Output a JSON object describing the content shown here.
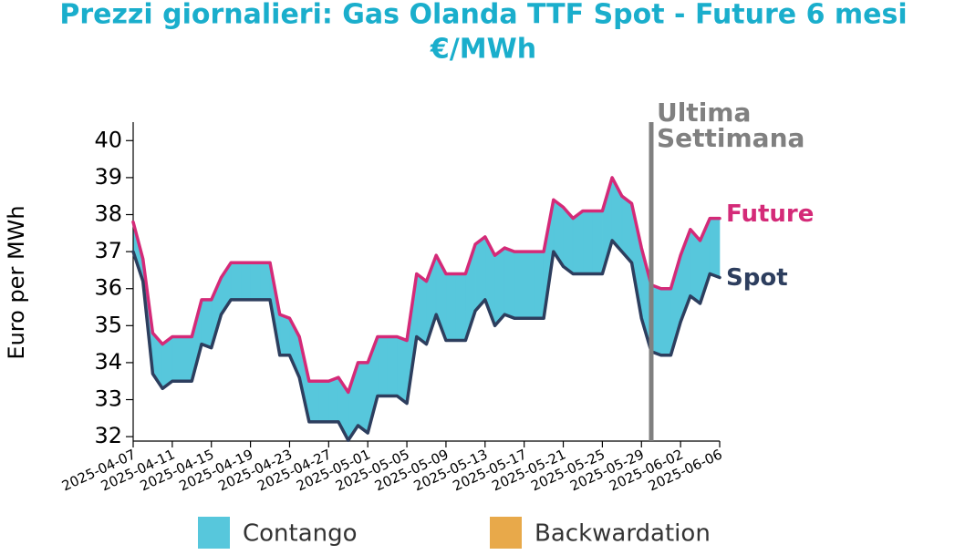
{
  "chart_data": {
    "type": "line",
    "title": [
      "Prezzi giornalieri: Gas Olanda TTF Spot - Future 6 mesi",
      "€/MWh"
    ],
    "y_label": "Euro per MWh",
    "x": [
      "2025-04-07",
      "2025-04-08",
      "2025-04-09",
      "2025-04-10",
      "2025-04-11",
      "2025-04-12",
      "2025-04-13",
      "2025-04-14",
      "2025-04-15",
      "2025-04-16",
      "2025-04-17",
      "2025-04-18",
      "2025-04-19",
      "2025-04-20",
      "2025-04-21",
      "2025-04-22",
      "2025-04-23",
      "2025-04-24",
      "2025-04-25",
      "2025-04-26",
      "2025-04-27",
      "2025-04-28",
      "2025-04-29",
      "2025-04-30",
      "2025-05-01",
      "2025-05-02",
      "2025-05-03",
      "2025-05-04",
      "2025-05-05",
      "2025-05-06",
      "2025-05-07",
      "2025-05-08",
      "2025-05-09",
      "2025-05-10",
      "2025-05-11",
      "2025-05-12",
      "2025-05-13",
      "2025-05-14",
      "2025-05-15",
      "2025-05-16",
      "2025-05-17",
      "2025-05-18",
      "2025-05-19",
      "2025-05-20",
      "2025-05-21",
      "2025-05-22",
      "2025-05-23",
      "2025-05-24",
      "2025-05-25",
      "2025-05-26",
      "2025-05-27",
      "2025-05-28",
      "2025-05-29",
      "2025-05-30",
      "2025-05-31",
      "2025-06-01",
      "2025-06-02",
      "2025-06-03",
      "2025-06-04",
      "2025-06-05",
      "2025-06-06"
    ],
    "series": [
      {
        "name": "Future",
        "color": "#d42a78",
        "values": [
          37.8,
          36.8,
          34.8,
          34.5,
          34.7,
          34.7,
          34.7,
          35.7,
          35.7,
          36.3,
          36.7,
          36.7,
          36.7,
          36.7,
          36.7,
          35.3,
          35.2,
          34.7,
          33.5,
          33.5,
          33.5,
          33.6,
          33.2,
          34.0,
          34.0,
          34.7,
          34.7,
          34.7,
          34.6,
          36.4,
          36.2,
          36.9,
          36.4,
          36.4,
          36.4,
          37.2,
          37.4,
          36.9,
          37.1,
          37.0,
          37.0,
          37.0,
          37.0,
          38.4,
          38.2,
          37.9,
          38.1,
          38.1,
          38.1,
          39.0,
          38.5,
          38.3,
          37.1,
          36.1,
          36.0,
          36.0,
          36.9,
          37.6,
          37.3,
          37.9,
          37.9
        ]
      },
      {
        "name": "Spot",
        "color": "#2d3e5e",
        "values": [
          37.0,
          36.2,
          33.7,
          33.3,
          33.5,
          33.5,
          33.5,
          34.5,
          34.4,
          35.3,
          35.7,
          35.7,
          35.7,
          35.7,
          35.7,
          34.2,
          34.2,
          33.6,
          32.4,
          32.4,
          32.4,
          32.4,
          31.9,
          32.3,
          32.1,
          33.1,
          33.1,
          33.1,
          32.9,
          34.7,
          34.5,
          35.3,
          34.6,
          34.6,
          34.6,
          35.4,
          35.7,
          35.0,
          35.3,
          35.2,
          35.2,
          35.2,
          35.2,
          37.0,
          36.6,
          36.4,
          36.4,
          36.4,
          36.4,
          37.3,
          37.0,
          36.7,
          35.2,
          34.3,
          34.2,
          34.2,
          35.1,
          35.8,
          35.6,
          36.4,
          36.3
        ]
      }
    ],
    "legend": [
      {
        "name": "Contango",
        "color": "#57c7dc"
      },
      {
        "name": "Backwardation",
        "color": "#e8a94a"
      }
    ],
    "annotation": {
      "x": "2025-05-30",
      "lines": [
        "Ultima",
        "Settimana"
      ],
      "color": "#808080"
    },
    "xlim": [
      "2025-04-07",
      "2025-06-06"
    ],
    "xticks": [
      "2025-04-07",
      "2025-04-11",
      "2025-04-15",
      "2025-04-19",
      "2025-04-23",
      "2025-04-27",
      "2025-05-01",
      "2025-05-05",
      "2025-05-09",
      "2025-05-13",
      "2025-05-17",
      "2025-05-21",
      "2025-05-25",
      "2025-05-29",
      "2025-06-02",
      "2025-06-06"
    ],
    "ylim": [
      31.88,
      40.5
    ],
    "yticks": [
      32,
      33,
      34,
      35,
      36,
      37,
      38,
      39,
      40
    ]
  }
}
